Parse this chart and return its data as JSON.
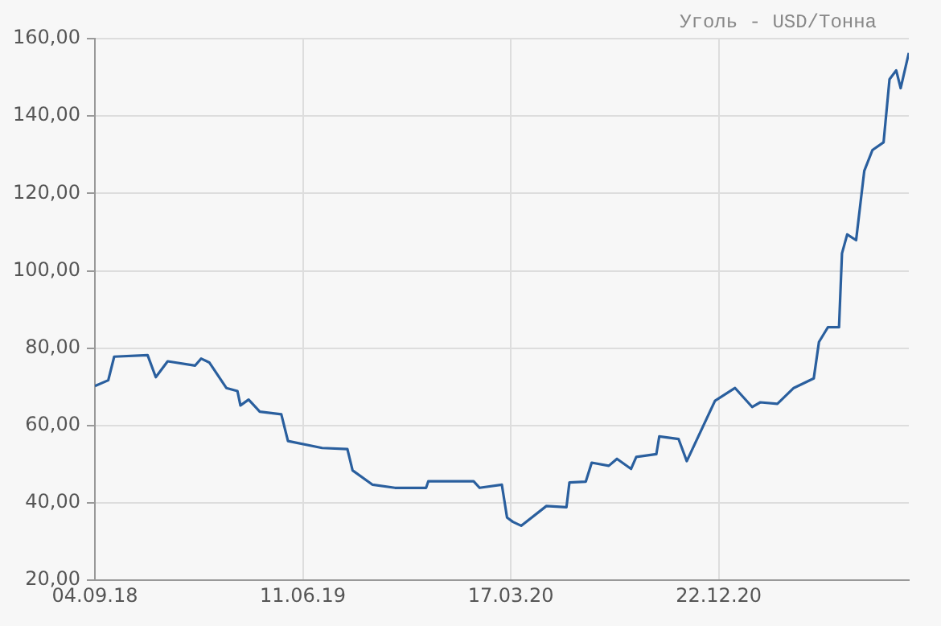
{
  "chart_data": {
    "type": "line",
    "title": "Уголь - USD/Тонна",
    "x": [
      "2018-09-04",
      "2018-09-22",
      "2018-09-30",
      "2018-11-14",
      "2018-11-25",
      "2018-12-11",
      "2019-01-17",
      "2019-01-25",
      "2019-02-05",
      "2019-02-28",
      "2019-03-15",
      "2019-03-19",
      "2019-03-30",
      "2019-04-14",
      "2019-05-13",
      "2019-05-22",
      "2019-07-07",
      "2019-08-10",
      "2019-08-17",
      "2019-09-13",
      "2019-10-13",
      "2019-11-24",
      "2019-11-27",
      "2020-01-27",
      "2020-02-04",
      "2020-03-05",
      "2020-03-12",
      "2020-03-20",
      "2020-03-31",
      "2020-05-04",
      "2020-05-31",
      "2020-06-04",
      "2020-06-26",
      "2020-07-04",
      "2020-07-27",
      "2020-08-07",
      "2020-08-26",
      "2020-09-02",
      "2020-09-29",
      "2020-10-03",
      "2020-10-29",
      "2020-11-09",
      "2020-12-17",
      "2021-01-13",
      "2021-02-05",
      "2021-02-16",
      "2021-03-11",
      "2021-04-02",
      "2021-04-29",
      "2021-05-06",
      "2021-05-18",
      "2021-06-02",
      "2021-06-06",
      "2021-06-13",
      "2021-06-25",
      "2021-07-06",
      "2021-07-17",
      "2021-08-01",
      "2021-08-09",
      "2021-08-18",
      "2021-08-24",
      "2021-09-04"
    ],
    "series": [
      {
        "color": "#2a5f9e",
        "values": [
          70.2,
          71.7,
          77.8,
          78.2,
          72.5,
          76.6,
          75.5,
          77.3,
          76.3,
          69.7,
          68.9,
          65.2,
          66.7,
          63.6,
          62.9,
          56.0,
          54.2,
          53.9,
          48.4,
          44.7,
          43.9,
          43.9,
          45.6,
          45.6,
          43.9,
          44.7,
          36.2,
          35.1,
          34.1,
          39.2,
          38.9,
          45.3,
          45.5,
          50.4,
          49.6,
          51.4,
          48.8,
          51.9,
          52.6,
          57.2,
          56.5,
          50.8,
          66.4,
          69.7,
          64.8,
          66.0,
          65.6,
          69.7,
          72.2,
          81.6,
          85.4,
          85.4,
          104.5,
          109.4,
          107.9,
          125.8,
          131.2,
          133.2,
          149.5,
          151.8,
          147.2,
          156.3
        ]
      }
    ],
    "xlim": [
      "2018-09-04",
      "2021-09-04"
    ],
    "xticks": [
      {
        "value": "2018-09-04",
        "label": "04.09.18"
      },
      {
        "value": "2019-06-11",
        "label": "11.06.19"
      },
      {
        "value": "2020-03-17",
        "label": "17.03.20"
      },
      {
        "value": "2020-12-22",
        "label": "22.12.20"
      }
    ],
    "ylim": [
      20,
      160
    ],
    "yticks": [
      {
        "value": 20,
        "label": "20,00"
      },
      {
        "value": 40,
        "label": "40,00"
      },
      {
        "value": 60,
        "label": "60,00"
      },
      {
        "value": 80,
        "label": "80,00"
      },
      {
        "value": 100,
        "label": "100,00"
      },
      {
        "value": 120,
        "label": "120,00"
      },
      {
        "value": 140,
        "label": "140,00"
      },
      {
        "value": 160,
        "label": "160,00"
      }
    ],
    "grid": true,
    "legend": false,
    "marker": "none",
    "line_style": "solid"
  }
}
